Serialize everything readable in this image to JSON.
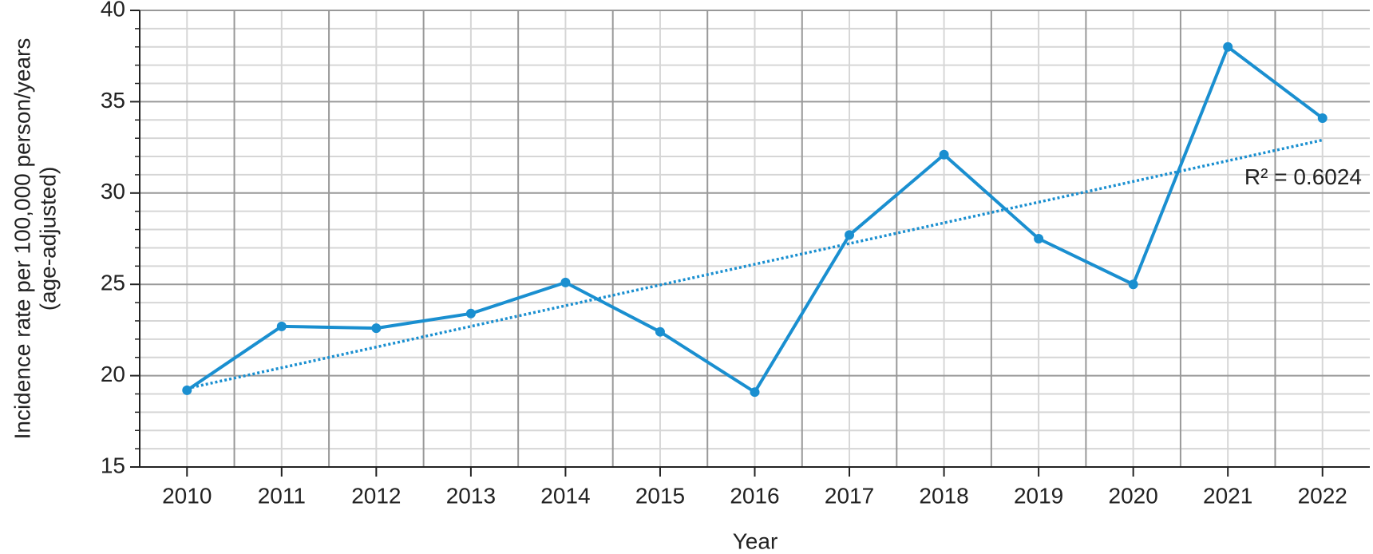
{
  "chart_data": {
    "type": "line",
    "xlabel": "Year",
    "ylabel": [
      "Incidence rate per 100,000 person/years",
      "(age-adjusted)"
    ],
    "categories": [
      "2010",
      "2011",
      "2012",
      "2013",
      "2014",
      "2015",
      "2016",
      "2017",
      "2018",
      "2019",
      "2020",
      "2021",
      "2022"
    ],
    "series": [
      {
        "color": "#1a8fd0",
        "values": [
          19.2,
          22.7,
          22.6,
          23.4,
          25.1,
          22.4,
          19.1,
          27.7,
          32.1,
          27.5,
          25.0,
          38.0,
          34.1
        ]
      }
    ],
    "trendline": {
      "values": [
        19.3,
        32.9
      ],
      "color": "#1a8fd0",
      "style": "dotted"
    },
    "annotation": "R² = 0.6024",
    "ylim": [
      15,
      40
    ],
    "yticks": [
      15,
      20,
      25,
      30,
      35,
      40
    ],
    "minor_yticks": [
      16,
      17,
      18,
      19,
      21,
      22,
      23,
      24,
      26,
      27,
      28,
      29,
      31,
      32,
      33,
      34,
      36,
      37,
      38,
      39
    ],
    "grid": true
  }
}
